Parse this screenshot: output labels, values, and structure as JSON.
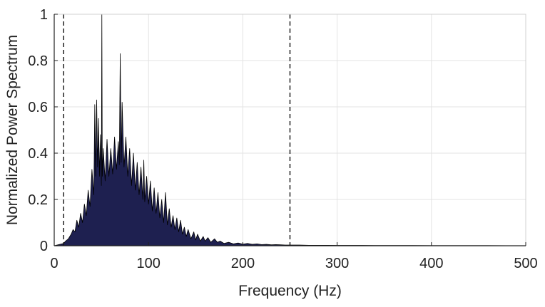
{
  "chart_data": {
    "type": "area",
    "title": "",
    "xlabel": "Frequency (Hz)",
    "ylabel": "Normalized Power Spectrum",
    "xlim": [
      0,
      500
    ],
    "ylim": [
      0,
      1
    ],
    "xticks": [
      0,
      100,
      200,
      300,
      400,
      500
    ],
    "yticks": [
      0,
      0.2,
      0.4,
      0.6,
      0.8,
      1
    ],
    "xtick_labels": [
      "0",
      "100",
      "200",
      "300",
      "400",
      "500"
    ],
    "ytick_labels": [
      "0",
      "0.2",
      "0.4",
      "0.6",
      "0.8",
      "1"
    ],
    "grid": true,
    "reference_lines_x": [
      10,
      250
    ],
    "reference_line_style": "dashed",
    "series": [
      {
        "fill_color": "#1e2050",
        "edge_color": "#000000",
        "points": [
          [
            0,
            0
          ],
          [
            5,
            0.005
          ],
          [
            10,
            0.01
          ],
          [
            12,
            0.02
          ],
          [
            15,
            0.03
          ],
          [
            18,
            0.05
          ],
          [
            20,
            0.07
          ],
          [
            22,
            0.06
          ],
          [
            24,
            0.11
          ],
          [
            26,
            0.08
          ],
          [
            28,
            0.14
          ],
          [
            30,
            0.1
          ],
          [
            32,
            0.18
          ],
          [
            34,
            0.13
          ],
          [
            36,
            0.24
          ],
          [
            38,
            0.17
          ],
          [
            40,
            0.33
          ],
          [
            42,
            0.22
          ],
          [
            43,
            0.61
          ],
          [
            44,
            0.3
          ],
          [
            45,
            0.63
          ],
          [
            46,
            0.34
          ],
          [
            47,
            0.55
          ],
          [
            48,
            0.3
          ],
          [
            49,
            0.48
          ],
          [
            50,
            0.26
          ],
          [
            50.5,
            1.0
          ],
          [
            51,
            0.3
          ],
          [
            52,
            0.42
          ],
          [
            54,
            0.28
          ],
          [
            56,
            0.46
          ],
          [
            58,
            0.3
          ],
          [
            60,
            0.42
          ],
          [
            62,
            0.31
          ],
          [
            64,
            0.47
          ],
          [
            66,
            0.33
          ],
          [
            68,
            0.45
          ],
          [
            69,
            0.35
          ],
          [
            70,
            0.83
          ],
          [
            71,
            0.36
          ],
          [
            72,
            0.62
          ],
          [
            74,
            0.34
          ],
          [
            76,
            0.47
          ],
          [
            78,
            0.3
          ],
          [
            80,
            0.42
          ],
          [
            82,
            0.26
          ],
          [
            84,
            0.4
          ],
          [
            86,
            0.24
          ],
          [
            88,
            0.36
          ],
          [
            90,
            0.22
          ],
          [
            92,
            0.34
          ],
          [
            94,
            0.2
          ],
          [
            95,
            0.37
          ],
          [
            96,
            0.19
          ],
          [
            98,
            0.3
          ],
          [
            100,
            0.18
          ],
          [
            102,
            0.28
          ],
          [
            104,
            0.15
          ],
          [
            106,
            0.25
          ],
          [
            108,
            0.14
          ],
          [
            110,
            0.23
          ],
          [
            112,
            0.12
          ],
          [
            114,
            0.2
          ],
          [
            116,
            0.1
          ],
          [
            118,
            0.23
          ],
          [
            120,
            0.09
          ],
          [
            122,
            0.16
          ],
          [
            124,
            0.08
          ],
          [
            126,
            0.13
          ],
          [
            128,
            0.07
          ],
          [
            130,
            0.12
          ],
          [
            132,
            0.06
          ],
          [
            134,
            0.11
          ],
          [
            136,
            0.05
          ],
          [
            138,
            0.08
          ],
          [
            140,
            0.04
          ],
          [
            142,
            0.07
          ],
          [
            145,
            0.03
          ],
          [
            148,
            0.06
          ],
          [
            150,
            0.025
          ],
          [
            152,
            0.05
          ],
          [
            155,
            0.02
          ],
          [
            158,
            0.04
          ],
          [
            160,
            0.02
          ],
          [
            163,
            0.035
          ],
          [
            166,
            0.015
          ],
          [
            170,
            0.03
          ],
          [
            173,
            0.015
          ],
          [
            176,
            0.02
          ],
          [
            180,
            0.01
          ],
          [
            185,
            0.015
          ],
          [
            190,
            0.008
          ],
          [
            195,
            0.012
          ],
          [
            200,
            0.007
          ],
          [
            205,
            0.01
          ],
          [
            210,
            0.006
          ],
          [
            215,
            0.008
          ],
          [
            220,
            0.005
          ],
          [
            225,
            0.006
          ],
          [
            230,
            0.004
          ],
          [
            235,
            0.005
          ],
          [
            240,
            0.004
          ],
          [
            245,
            0.003
          ],
          [
            250,
            0.003
          ],
          [
            260,
            0.003
          ],
          [
            270,
            0.002
          ],
          [
            280,
            0.002
          ],
          [
            290,
            0.002
          ],
          [
            300,
            0.0015
          ],
          [
            320,
            0.0015
          ],
          [
            340,
            0.001
          ],
          [
            360,
            0.001
          ],
          [
            380,
            0.001
          ],
          [
            400,
            0.0008
          ],
          [
            420,
            0.0008
          ],
          [
            440,
            0.0006
          ],
          [
            460,
            0.0006
          ],
          [
            480,
            0.0005
          ],
          [
            500,
            0.0005
          ]
        ]
      }
    ]
  }
}
